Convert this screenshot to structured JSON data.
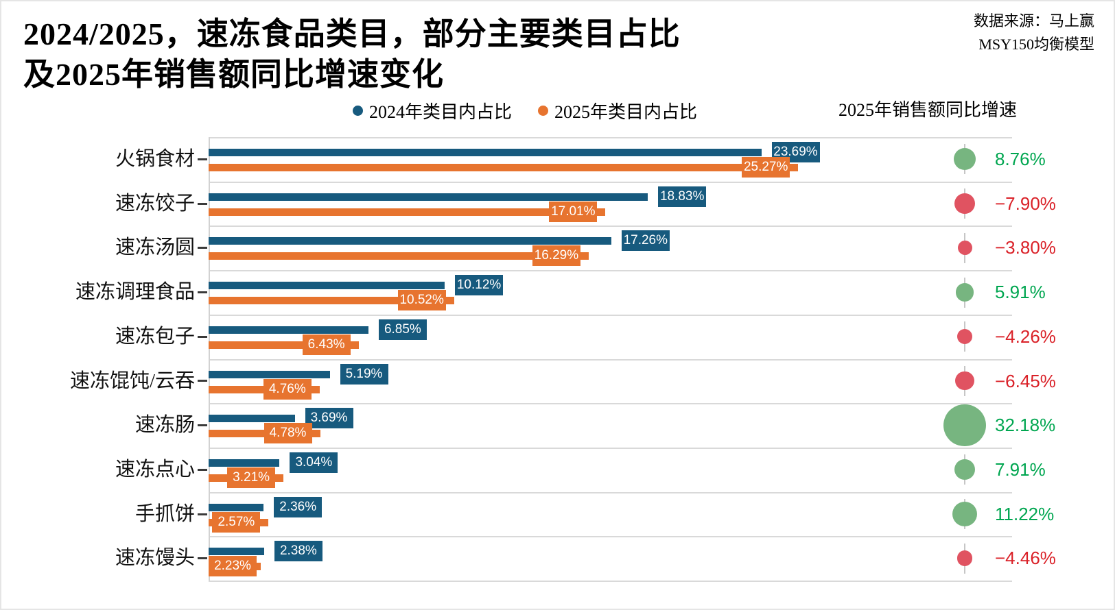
{
  "title": {
    "line1": "2024/2025，速冻食品类目，部分主要类目占比",
    "line2": "及2025年销售额同比增速变化"
  },
  "source": {
    "line1": "数据来源：马上赢",
    "line2": "MSY150均衡模型"
  },
  "legend": {
    "items": [
      {
        "label": "2024年类目内占比",
        "color": "#175A7E"
      },
      {
        "label": "2025年类目内占比",
        "color": "#E7742F"
      }
    ]
  },
  "growth_header": "2025年销售额同比增速",
  "colors": {
    "bar_2024": "#175A7E",
    "bar_2025": "#E7742F",
    "growth_positive_circle": "#77B580",
    "growth_negative_circle": "#E05361",
    "growth_positive_text": "#00A650",
    "growth_negative_text": "#DA2128",
    "gridline": "#D9D9D9",
    "axis": "#D2D2D2"
  },
  "chart_data": {
    "type": "bar",
    "orientation": "horizontal",
    "title": "2024/2025，速冻食品类目，部分主要类目占比及2025年销售额同比增速变化",
    "categories": [
      "火锅食材",
      "速冻饺子",
      "速冻汤圆",
      "速冻调理食品",
      "速冻包子",
      "速冻馄饨/云吞",
      "速冻肠",
      "速冻点心",
      "手抓饼",
      "速冻馒头"
    ],
    "series": [
      {
        "name": "2024年类目内占比",
        "values": [
          23.69,
          18.83,
          17.26,
          10.12,
          6.85,
          5.19,
          3.69,
          3.04,
          2.36,
          2.38
        ],
        "labels": [
          "23.69%",
          "18.83%",
          "17.26%",
          "10.12%",
          "6.85%",
          "5.19%",
          "3.69%",
          "3.04%",
          "2.36%",
          "2.38%"
        ]
      },
      {
        "name": "2025年类目内占比",
        "values": [
          25.27,
          17.01,
          16.29,
          10.52,
          6.43,
          4.76,
          4.78,
          3.21,
          2.57,
          2.23
        ],
        "labels": [
          "25.27%",
          "17.01%",
          "16.29%",
          "10.52%",
          "6.43%",
          "4.76%",
          "4.78%",
          "3.21%",
          "2.57%",
          "2.23%"
        ]
      }
    ],
    "growth": {
      "name": "2025年销售额同比增速",
      "values": [
        8.76,
        -7.9,
        -3.8,
        5.91,
        -4.26,
        -6.45,
        32.18,
        7.91,
        11.22,
        -4.46
      ],
      "labels": [
        "8.76%",
        "−7.90%",
        "−3.80%",
        "5.91%",
        "−4.26%",
        "−6.45%",
        "32.18%",
        "7.91%",
        "11.22%",
        "−4.46%"
      ]
    },
    "xlim": [
      0,
      34.4
    ],
    "grid": "horizontal-row-separators",
    "legend_position": "top-center"
  }
}
